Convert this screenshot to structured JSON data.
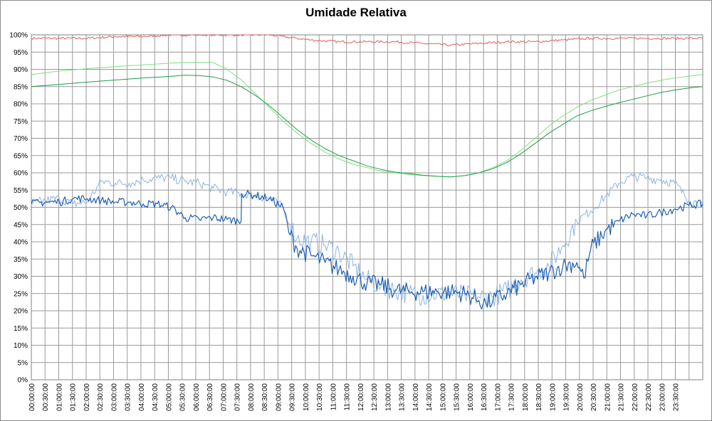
{
  "chart_data": {
    "type": "line",
    "title": "Umidade Relativa",
    "xlabel": "",
    "ylabel": "",
    "ylim": [
      0,
      100
    ],
    "y_ticks": [
      "0%",
      "5%",
      "10%",
      "15%",
      "20%",
      "25%",
      "30%",
      "35%",
      "40%",
      "45%",
      "50%",
      "55%",
      "60%",
      "65%",
      "70%",
      "75%",
      "80%",
      "85%",
      "90%",
      "95%",
      "100%"
    ],
    "x_tick_labels": [
      "00:00:00",
      "00:30:00",
      "01:00:00",
      "01:30:00",
      "02:00:00",
      "02:30:00",
      "03:00:00",
      "03:30:00",
      "04:00:00",
      "04:30:00",
      "05:00:00",
      "05:30:00",
      "06:00:00",
      "06:30:00",
      "07:00:00",
      "07:30:00",
      "08:00:00",
      "08:30:00",
      "09:00:00",
      "09:30:00",
      "10:00:00",
      "10:30:00",
      "11:00:00",
      "11:30:00",
      "12:00:00",
      "12:30:00",
      "13:00:00",
      "13:30:00",
      "14:00:00",
      "14:30:00",
      "15:00:00",
      "15:30:00",
      "16:00:00",
      "16:30:00",
      "17:00:00",
      "17:30:00",
      "18:00:00",
      "18:30:00",
      "19:00:00",
      "19:30:00",
      "20:00:00",
      "20:30:00",
      "21:00:00",
      "21:30:00",
      "22:00:00",
      "22:30:00",
      "23:00:00",
      "23:30:00"
    ],
    "grid": true,
    "legend": "none",
    "series": [
      {
        "color": "#e06060",
        "x": [
          "00:00",
          "01:00",
          "02:00",
          "03:00",
          "04:00",
          "05:00",
          "06:00",
          "07:00",
          "08:00",
          "08:30",
          "09:00",
          "09:30",
          "10:00",
          "11:00",
          "12:00",
          "13:00",
          "14:00",
          "15:00",
          "16:00",
          "17:00",
          "18:00",
          "19:00",
          "20:00",
          "21:00",
          "22:00",
          "23:00",
          "24:00"
        ],
        "values": [
          99,
          99,
          99,
          99.5,
          99.5,
          100,
          100,
          100,
          100,
          100,
          99.5,
          99,
          98.5,
          98,
          98,
          98,
          97.5,
          97,
          97.5,
          98,
          98,
          98.5,
          99,
          99,
          99,
          99,
          99
        ]
      },
      {
        "color": "#7ee07e",
        "x": [
          "00:00",
          "01:00",
          "02:00",
          "03:00",
          "04:00",
          "05:00",
          "05:30",
          "06:00",
          "06:30",
          "07:00",
          "07:30",
          "08:00",
          "08:30",
          "09:00",
          "09:30",
          "10:00",
          "10:30",
          "11:00",
          "11:30",
          "12:00",
          "12:30",
          "13:00",
          "13:30",
          "14:00",
          "14:30",
          "15:00",
          "15:30",
          "16:00",
          "16:30",
          "17:00",
          "17:30",
          "18:00",
          "18:30",
          "19:00",
          "19:30",
          "20:00",
          "20:30",
          "21:00",
          "21:30",
          "22:00",
          "22:30",
          "23:00",
          "23:30",
          "24:00"
        ],
        "values": [
          88.5,
          89.5,
          90.2,
          90.8,
          91.3,
          91.8,
          92,
          92,
          92,
          90,
          87,
          83,
          79,
          75,
          71.5,
          68.5,
          66,
          64,
          62.5,
          61.5,
          60.5,
          60,
          59.5,
          59.2,
          59,
          58.8,
          59.2,
          60,
          61.5,
          63.5,
          66.5,
          70,
          73.5,
          76.5,
          79,
          81,
          82.5,
          84,
          85,
          86,
          86.8,
          87.5,
          88,
          88.5
        ]
      },
      {
        "color": "#1e9e4a",
        "x": [
          "00:00",
          "01:00",
          "02:00",
          "03:00",
          "04:00",
          "05:00",
          "05:30",
          "06:00",
          "06:30",
          "07:00",
          "07:30",
          "08:00",
          "08:30",
          "09:00",
          "09:30",
          "10:00",
          "10:30",
          "11:00",
          "11:30",
          "12:00",
          "12:30",
          "13:00",
          "13:30",
          "14:00",
          "14:30",
          "15:00",
          "15:30",
          "16:00",
          "16:30",
          "17:00",
          "17:30",
          "18:00",
          "18:30",
          "19:00",
          "19:30",
          "20:00",
          "20:30",
          "21:00",
          "21:30",
          "22:00",
          "22:30",
          "23:00",
          "23:30",
          "24:00"
        ],
        "values": [
          85,
          85.6,
          86.3,
          86.9,
          87.5,
          88,
          88.3,
          88.2,
          87.8,
          86.8,
          85,
          82.5,
          79.5,
          76,
          72.5,
          69.5,
          67,
          65,
          63.5,
          62,
          61,
          60.2,
          59.8,
          59.3,
          59,
          58.8,
          59.2,
          60,
          61.2,
          63,
          65.5,
          68.5,
          71.5,
          74,
          76.5,
          78,
          79.2,
          80.3,
          81.3,
          82.3,
          83.3,
          84,
          84.6,
          85
        ]
      },
      {
        "color": "#8db4e2",
        "x": [
          "00:00",
          "00:30",
          "01:00",
          "01:30",
          "02:00",
          "02:30",
          "03:00",
          "03:30",
          "04:00",
          "04:30",
          "05:00",
          "05:30",
          "06:00",
          "06:30",
          "07:00",
          "07:30",
          "08:00",
          "08:30",
          "09:00",
          "09:15",
          "09:30",
          "10:00",
          "10:30",
          "11:00",
          "11:30",
          "12:00",
          "12:30",
          "13:00",
          "13:30",
          "14:00",
          "14:30",
          "15:00",
          "15:30",
          "16:00",
          "16:30",
          "17:00",
          "17:30",
          "18:00",
          "18:30",
          "19:00",
          "19:30",
          "20:00",
          "20:30",
          "21:00",
          "21:30",
          "22:00",
          "22:30",
          "23:00",
          "23:30",
          "24:00"
        ],
        "values": [
          51,
          52,
          52.5,
          51,
          51.5,
          57.5,
          57,
          57,
          58,
          58.5,
          58.5,
          57.5,
          57,
          55.5,
          54.5,
          54,
          53.5,
          52.5,
          50,
          45,
          41,
          40,
          39,
          37,
          33,
          29,
          27,
          26,
          25,
          24.5,
          25,
          25,
          24.5,
          24,
          24,
          26,
          29,
          31,
          33,
          39,
          46,
          49,
          53,
          57,
          59,
          58.5,
          58,
          57,
          52,
          51
        ]
      },
      {
        "color": "#1f5fb4",
        "x": [
          "00:00",
          "00:30",
          "01:00",
          "01:30",
          "02:00",
          "02:30",
          "03:00",
          "03:30",
          "04:00",
          "04:30",
          "05:00",
          "05:30",
          "06:00",
          "06:30",
          "07:00",
          "07:30",
          "07:31",
          "08:00",
          "08:30",
          "09:00",
          "09:15",
          "09:30",
          "10:00",
          "10:30",
          "11:00",
          "11:30",
          "12:00",
          "12:30",
          "13:00",
          "13:30",
          "14:00",
          "14:30",
          "15:00",
          "15:30",
          "16:00",
          "16:15",
          "16:30",
          "17:00",
          "17:30",
          "18:00",
          "18:30",
          "19:00",
          "19:30",
          "19:45",
          "20:00",
          "20:30",
          "21:00",
          "21:30",
          "22:00",
          "22:30",
          "23:00",
          "23:30",
          "24:00"
        ],
        "values": [
          51,
          51.5,
          51.5,
          52.5,
          52.5,
          52,
          51.5,
          51.5,
          51,
          51,
          50,
          47,
          46.5,
          47,
          46.5,
          46,
          54,
          53.5,
          52.5,
          50,
          42,
          38,
          36,
          34,
          32,
          30,
          28,
          27.5,
          26,
          25.5,
          25.5,
          25.5,
          25.5,
          25,
          23,
          22,
          23,
          25,
          27.5,
          29.5,
          31,
          33,
          34,
          29.5,
          38,
          43,
          46,
          48,
          47.5,
          48.5,
          49.5,
          50.5,
          51
        ]
      }
    ]
  }
}
